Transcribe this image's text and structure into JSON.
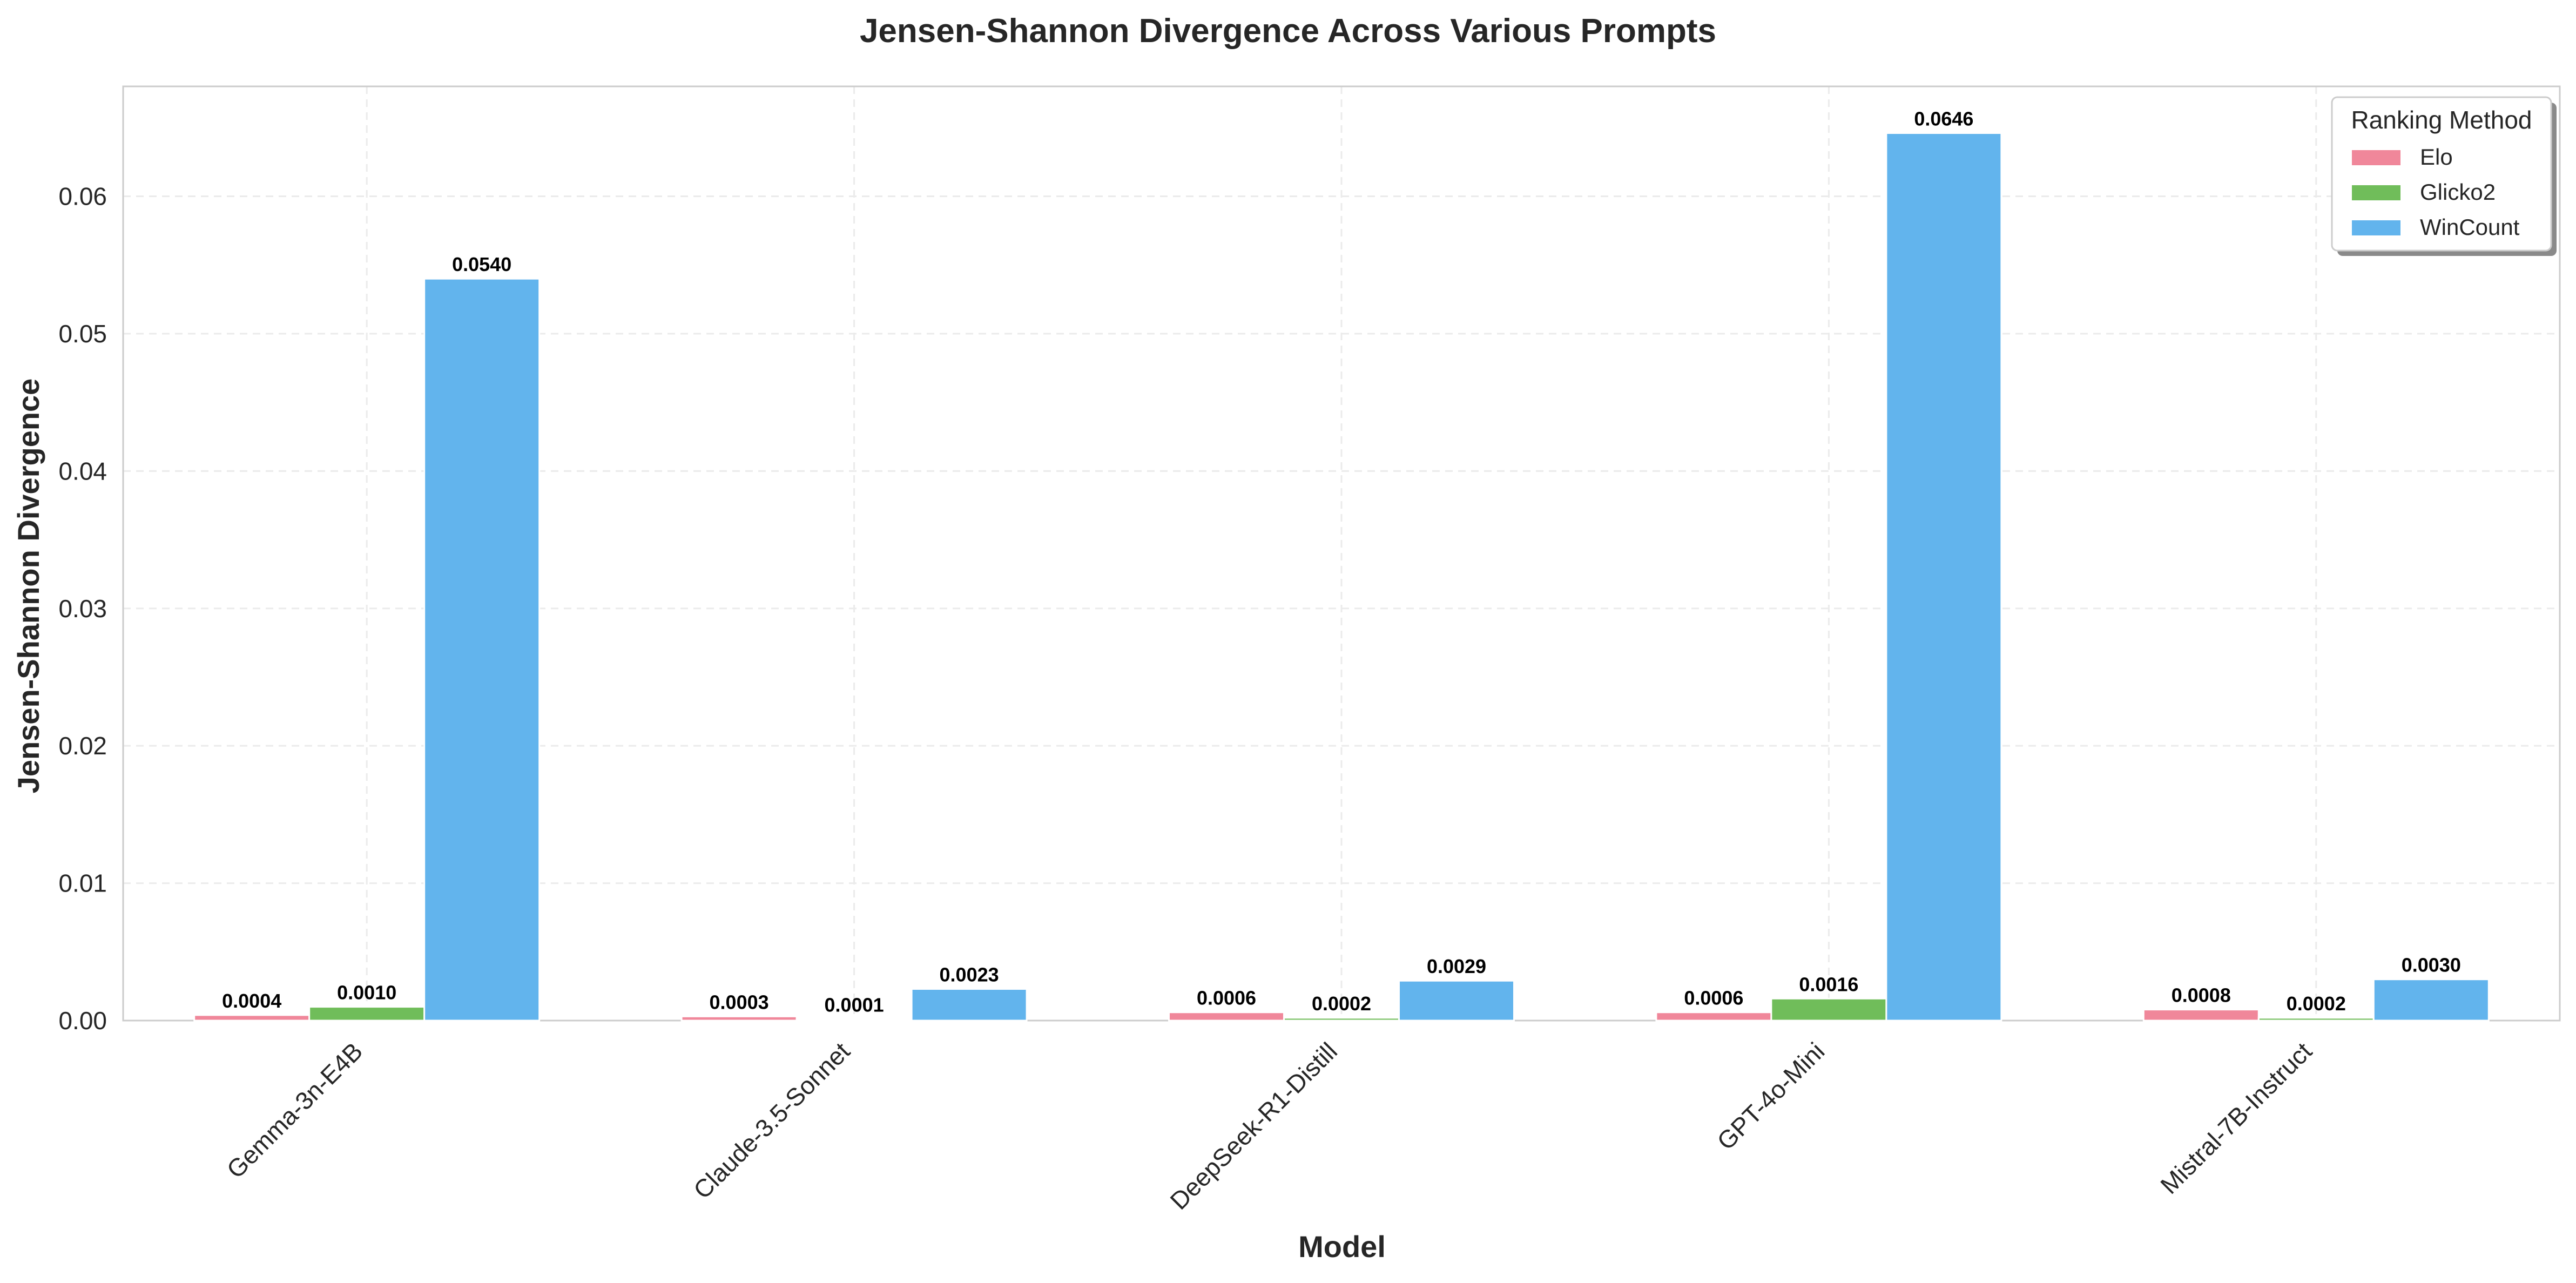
{
  "chart_data": {
    "type": "bar",
    "title": "Jensen-Shannon Divergence Across Various Prompts",
    "xlabel": "Model",
    "ylabel": "Jensen-Shannon Divergence",
    "categories": [
      "Gemma-3n-E4B",
      "Claude-3.5-Sonnet",
      "DeepSeek-R1-Distill",
      "GPT-4o-Mini",
      "Mistral-7B-Instruct"
    ],
    "series": [
      {
        "name": "Elo",
        "color": "#f0879a",
        "values": [
          0.0004,
          0.0003,
          0.0006,
          0.0006,
          0.0008
        ],
        "labels": [
          "0.0004",
          "0.0003",
          "0.0006",
          "0.0006",
          "0.0008"
        ]
      },
      {
        "name": "Glicko2",
        "color": "#70bd5a",
        "values": [
          0.001,
          0.0001,
          0.0002,
          0.0016,
          0.0002
        ],
        "labels": [
          "0.0010",
          "0.0001",
          "0.0002",
          "0.0016",
          "0.0002"
        ]
      },
      {
        "name": "WinCount",
        "color": "#62b4ed",
        "values": [
          0.054,
          0.0023,
          0.0029,
          0.0646,
          0.003
        ],
        "labels": [
          "0.0540",
          "0.0023",
          "0.0029",
          "0.0646",
          "0.0030"
        ]
      }
    ],
    "ylim": [
      0,
      0.068
    ],
    "yticks": [
      0.0,
      0.01,
      0.02,
      0.03,
      0.04,
      0.05,
      0.06
    ],
    "ytick_labels": [
      "0.00",
      "0.01",
      "0.02",
      "0.03",
      "0.04",
      "0.05",
      "0.06"
    ],
    "legend": {
      "title": "Ranking Method",
      "placement": "top-right"
    },
    "grid": true
  }
}
